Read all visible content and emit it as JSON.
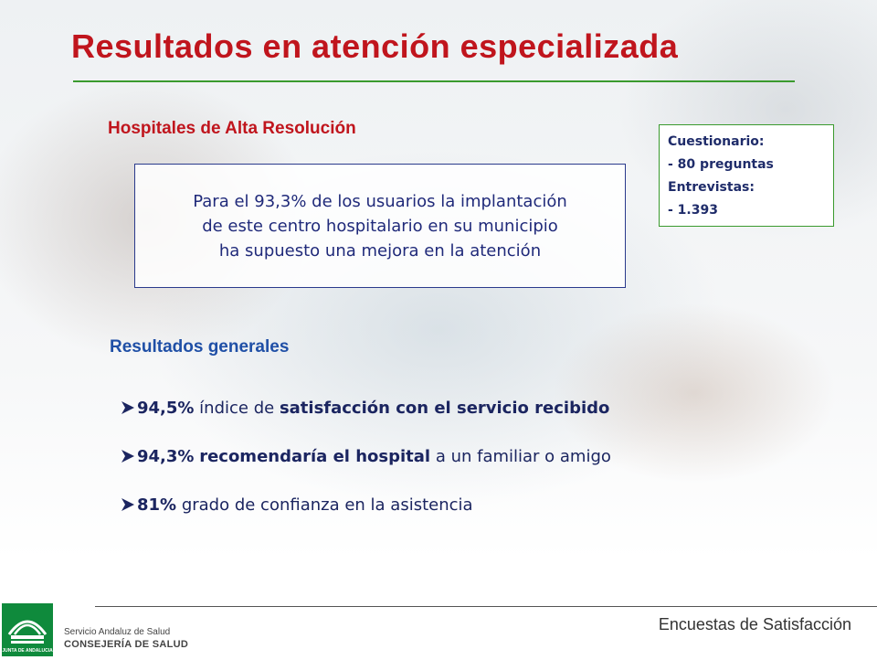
{
  "slide": {
    "title": "Resultados en atención especializada"
  },
  "hospitales": {
    "heading": "Hospitales de Alta Resolución",
    "highlight_lines": [
      "Para el 93,3% de los usuarios la implantación",
      "de este centro hospitalario en su municipio",
      "ha supuesto una mejora en la atención"
    ]
  },
  "methodology": {
    "lines": [
      "Cuestionario:",
      "- 80 preguntas",
      "Entrevistas:",
      "- 1.393"
    ]
  },
  "resultados": {
    "heading": "Resultados generales",
    "bullets": [
      {
        "value": "94,5%",
        "pre": " índice de ",
        "bold": "satisfacción con el servicio recibido",
        "post": ""
      },
      {
        "value": "94,3%",
        "pre": " ",
        "bold": "recomendaría el hospital",
        "post": " a un familiar o amigo"
      },
      {
        "value": "81%",
        "pre": " grado de confianza en la asistencia",
        "bold": "",
        "post": ""
      }
    ]
  },
  "footer": {
    "label": "Encuestas de Satisfacción",
    "org_line_1": "Servicio Andaluz de Salud",
    "org_line_2": "CONSEJERÍA DE SALUD",
    "logo_lettering": "JUNTA DE ANDALUCIA"
  },
  "colors": {
    "title_red": "#c0151d",
    "accent_green": "#3a9a2e",
    "heading_blue": "#1f4fa6",
    "text_navy": "#1b2560",
    "logo_green": "#0f8a3c"
  },
  "icons": {
    "bullet": "arrowhead-bullet-icon",
    "logo": "junta-andalucia-logo"
  }
}
